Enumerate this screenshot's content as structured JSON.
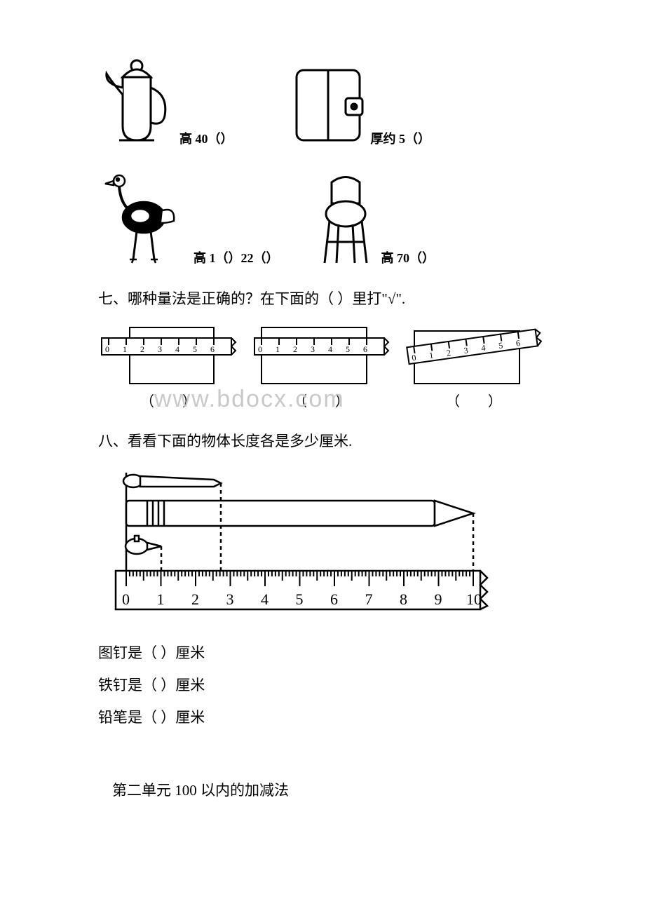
{
  "q6": {
    "teapot": {
      "label_prefix": "高 40（",
      "label_suffix": "）"
    },
    "wallet": {
      "label_prefix": "厚约 5（",
      "label_suffix": "）"
    },
    "ostrich": {
      "label_prefix": "高 1（",
      "label_mid": "）22（",
      "label_suffix": "）"
    },
    "stool": {
      "label_prefix": "高 70（",
      "label_suffix": "）"
    }
  },
  "q7": {
    "heading": "七、哪种量法是正确的？在下面的（ ）里打\"√\"."
  },
  "q8": {
    "heading": "八、看看下面的物体长度各是多少厘米.",
    "ruler": {
      "min": 0,
      "max": 10,
      "ticks": [
        0,
        1,
        2,
        3,
        4,
        5,
        6,
        7,
        8,
        9,
        10
      ]
    },
    "lines": {
      "thumbtack": "图钉是（ ）厘米",
      "nail": "铁钉是（ ）厘米",
      "pencil": "铅笔是（ ）厘米"
    }
  },
  "unit2": {
    "title": "第二单元 100 以内的加减法"
  },
  "paren": "（　　）",
  "watermark": "www.bdocx.com",
  "colors": {
    "stroke": "#000000",
    "fill_white": "#ffffff",
    "watermark": "#c9c9c9"
  }
}
